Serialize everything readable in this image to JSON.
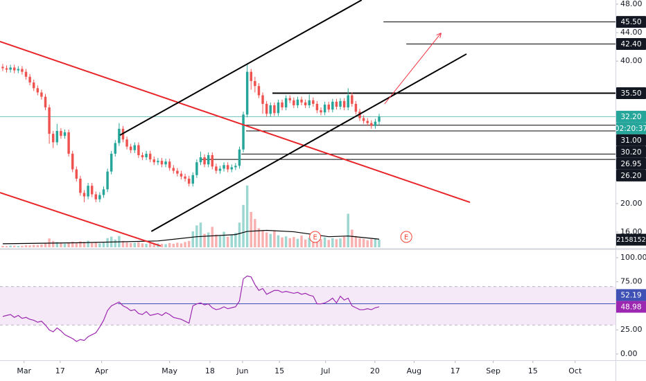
{
  "chart_data": [
    {
      "type": "candlestick",
      "x": [
        0,
        1,
        2,
        3,
        4,
        5,
        6,
        7,
        8,
        9,
        10,
        11,
        12,
        13,
        14,
        15,
        16,
        17,
        18,
        19,
        20,
        21,
        22,
        23,
        24,
        25,
        26,
        27,
        28,
        29,
        30,
        31,
        32,
        33,
        34,
        35,
        36,
        37,
        38,
        39,
        40,
        41,
        42,
        43,
        44,
        45,
        46,
        47,
        48,
        49,
        50,
        51,
        52,
        53,
        54,
        55,
        56,
        57,
        58,
        59,
        60,
        61,
        62,
        63,
        64,
        65,
        66,
        67,
        68,
        69,
        70,
        71,
        72,
        73,
        74,
        75,
        76,
        77,
        78,
        79,
        80,
        81,
        82,
        83,
        84,
        85,
        86,
        87,
        88,
        89,
        90,
        91,
        92,
        93,
        94,
        95,
        96,
        97
      ],
      "open": [
        39.2,
        39.0,
        38.8,
        39.1,
        38.7,
        38.9,
        38.5,
        37.8,
        37.0,
        36.2,
        35.6,
        35.0,
        33.5,
        29.8,
        28.6,
        30.2,
        29.5,
        30.0,
        27.0,
        24.8,
        23.5,
        21.5,
        21.0,
        22.5,
        21.3,
        20.6,
        21.2,
        22.0,
        24.5,
        27.0,
        28.5,
        30.5,
        29.0,
        28.0,
        27.5,
        28.2,
        26.8,
        26.5,
        27.0,
        26.2,
        25.8,
        26.0,
        25.5,
        25.9,
        25.0,
        24.6,
        24.2,
        23.8,
        23.5,
        22.8,
        24.0,
        25.8,
        26.5,
        25.5,
        26.8,
        25.2,
        24.6,
        24.9,
        25.4,
        24.8,
        25.1,
        25.3,
        27.6,
        32.5,
        38.5,
        37.2,
        36.5,
        35.2,
        34.0,
        32.6,
        33.8,
        32.7,
        34.2,
        33.5,
        34.8,
        34.5,
        33.8,
        34.6,
        34.2,
        33.8,
        34.5,
        34.0,
        33.1,
        32.8,
        33.9,
        33.2,
        34.3,
        33.6,
        34.4,
        33.5,
        35.2,
        34.0,
        32.9,
        32.0,
        31.6,
        31.3,
        30.9,
        31.5
      ],
      "high": [
        39.6,
        39.4,
        39.5,
        39.5,
        39.3,
        39.3,
        38.9,
        38.2,
        37.4,
        36.6,
        36.0,
        35.4,
        33.9,
        30.2,
        31.2,
        30.6,
        30.4,
        30.4,
        27.4,
        25.2,
        23.9,
        21.9,
        22.9,
        22.9,
        21.7,
        21.6,
        22.4,
        24.9,
        27.4,
        28.9,
        31.3,
        30.9,
        29.4,
        28.4,
        28.6,
        28.6,
        27.2,
        27.4,
        27.4,
        26.6,
        26.4,
        26.4,
        26.3,
        26.3,
        25.4,
        25.0,
        24.6,
        24.2,
        23.9,
        24.4,
        26.2,
        27.3,
        26.9,
        27.2,
        27.2,
        25.6,
        25.3,
        25.8,
        25.8,
        25.5,
        25.7,
        28.0,
        32.9,
        39.7,
        38.9,
        37.8,
        36.9,
        35.6,
        34.4,
        34.2,
        34.2,
        34.6,
        34.6,
        35.2,
        35.2,
        34.9,
        35.0,
        35.0,
        34.6,
        35.3,
        34.9,
        34.4,
        33.5,
        34.3,
        34.3,
        34.7,
        34.7,
        34.8,
        34.8,
        36.2,
        35.6,
        34.4,
        33.3,
        32.4,
        32.0,
        31.7,
        31.9,
        32.6
      ],
      "low": [
        38.6,
        38.4,
        38.4,
        38.3,
        38.3,
        38.1,
        37.4,
        36.6,
        35.8,
        35.2,
        34.6,
        33.1,
        28.4,
        27.8,
        28.2,
        29.1,
        29.1,
        26.6,
        24.4,
        23.1,
        21.1,
        20.2,
        20.6,
        20.9,
        20.2,
        20.2,
        20.8,
        21.6,
        24.1,
        26.6,
        28.1,
        28.6,
        27.6,
        27.1,
        27.1,
        26.4,
        26.1,
        26.1,
        25.8,
        25.4,
        25.4,
        25.1,
        25.1,
        24.6,
        24.2,
        23.8,
        23.4,
        23.1,
        22.4,
        22.4,
        23.6,
        25.4,
        25.1,
        25.1,
        24.8,
        24.2,
        24.2,
        24.5,
        24.4,
        24.4,
        24.7,
        24.9,
        27.2,
        32.1,
        36.0,
        35.6,
        34.8,
        32.6,
        32.2,
        32.2,
        32.3,
        32.3,
        33.1,
        33.1,
        34.1,
        33.4,
        33.4,
        33.8,
        33.4,
        33.4,
        33.6,
        32.7,
        32.4,
        32.4,
        32.8,
        32.8,
        33.2,
        33.2,
        33.1,
        33.1,
        33.6,
        32.5,
        31.6,
        31.2,
        30.9,
        30.5,
        30.5,
        31.1
      ],
      "close": [
        39.0,
        38.8,
        39.1,
        38.7,
        38.9,
        38.5,
        37.8,
        37.0,
        36.2,
        35.6,
        35.0,
        33.5,
        29.8,
        28.6,
        30.2,
        29.5,
        30.0,
        27.0,
        24.8,
        23.5,
        21.5,
        21.0,
        22.5,
        21.3,
        20.6,
        21.2,
        22.0,
        24.5,
        27.0,
        28.5,
        30.5,
        29.0,
        28.0,
        27.5,
        28.2,
        26.8,
        26.5,
        27.0,
        26.2,
        25.8,
        26.0,
        25.5,
        25.9,
        25.0,
        24.6,
        24.2,
        23.8,
        23.5,
        22.8,
        24.0,
        25.8,
        26.5,
        25.5,
        26.8,
        25.2,
        24.6,
        24.9,
        25.4,
        24.8,
        25.1,
        25.3,
        27.6,
        32.5,
        38.5,
        37.2,
        36.5,
        35.2,
        34.0,
        32.6,
        33.8,
        32.7,
        34.2,
        33.5,
        34.8,
        34.5,
        33.8,
        34.6,
        34.2,
        33.8,
        34.5,
        34.0,
        33.1,
        32.8,
        33.9,
        33.2,
        34.3,
        33.6,
        34.4,
        33.5,
        35.2,
        34.0,
        32.9,
        32.0,
        31.6,
        31.3,
        30.9,
        31.5,
        32.2
      ],
      "colors": {
        "up": "#26a69a",
        "down": "#ef5350"
      },
      "xlim": [
        -0.7,
        157.9
      ],
      "xticks": [
        {
          "value": 5.5,
          "label": "Mar"
        },
        {
          "value": 14.8,
          "label": "17"
        },
        {
          "value": 25.5,
          "label": "Apr"
        },
        {
          "value": 43,
          "label": "May"
        },
        {
          "value": 53.4,
          "label": "18"
        },
        {
          "value": 61.8,
          "label": "Jun"
        },
        {
          "value": 71.3,
          "label": "15"
        },
        {
          "value": 83.2,
          "label": "Jul"
        },
        {
          "value": 95.9,
          "label": "20"
        },
        {
          "value": 106,
          "label": "Aug"
        },
        {
          "value": 116.6,
          "label": "17"
        },
        {
          "value": 126.4,
          "label": "Sep"
        },
        {
          "value": 136.6,
          "label": "15"
        },
        {
          "value": 147.5,
          "label": "Oct"
        }
      ],
      "ylim": [
        13.86,
        48.58
      ],
      "yticks": [
        {
          "value": 48,
          "label": "48.00"
        },
        {
          "value": 44,
          "label": "44.00"
        },
        {
          "value": 40,
          "label": "40.00"
        },
        {
          "value": 20,
          "label": "20.00"
        },
        {
          "value": 16,
          "label": "16.00"
        }
      ],
      "price_lines": [
        {
          "value": 45.5,
          "label": "45.50",
          "from": 98.1,
          "width": 1
        },
        {
          "value": 42.4,
          "label": "42.40",
          "from": 104,
          "width": 1
        },
        {
          "value": 35.5,
          "label": "35.50",
          "from": 69.5,
          "width": 2
        },
        {
          "value": 31.0,
          "label": "31.00",
          "from": 62.7,
          "width": 1
        },
        {
          "value": 30.2,
          "label": "30.20",
          "from": 62.7,
          "width": 1
        },
        {
          "value": 26.95,
          "label": "26.95",
          "from": 61.5,
          "width": 1
        },
        {
          "value": 26.2,
          "label": "26.20",
          "from": 51.1,
          "width": 1
        }
      ],
      "last_price": {
        "value": 32.2,
        "label": "32.20",
        "countdown": "02:20:37",
        "color": "#26a69a"
      },
      "drawings": [
        {
          "color": "#e8262a",
          "arrow": false,
          "points": [
            [
              -0.7,
              42.75
            ],
            [
              120.4,
              20.18
            ]
          ]
        },
        {
          "color": "#e8262a",
          "arrow": false,
          "points": [
            [
              -0.7,
              21.54
            ],
            [
              40.7,
              14.05
            ]
          ]
        },
        {
          "color": "#000000",
          "arrow": false,
          "points": [
            [
              30.2,
              29.6
            ],
            [
              92.5,
              48.58
            ]
          ]
        },
        {
          "color": "#000000",
          "arrow": false,
          "points": [
            [
              38.3,
              16.1
            ],
            [
              119.5,
              41.0
            ]
          ]
        },
        {
          "color": "#f23645",
          "arrow": true,
          "points": [
            [
              98.4,
              34.0
            ],
            [
              112.9,
              43.9
            ]
          ]
        }
      ],
      "events": [
        {
          "x": 80.5,
          "label": "E"
        },
        {
          "x": 104,
          "label": "E"
        }
      ],
      "volume": {
        "values": [
          400000,
          350000,
          500000,
          450000,
          380000,
          420000,
          600000,
          550000,
          700000,
          650000,
          800000,
          1200000,
          2500000,
          1800000,
          1500000,
          1100000,
          1000000,
          1400000,
          1600000,
          1300000,
          1700000,
          1500000,
          1900000,
          1200000,
          1400000,
          1100000,
          1300000,
          2600000,
          3000000,
          2200000,
          3200000,
          1800000,
          1400000,
          1200000,
          1300000,
          1500000,
          1100000,
          1000000,
          1200000,
          900000,
          1100000,
          1000000,
          900000,
          1200000,
          1000000,
          1300000,
          1100000,
          1500000,
          1800000,
          4500000,
          6200000,
          7000000,
          3800000,
          4200000,
          5800000,
          3600000,
          3200000,
          4400000,
          3000000,
          3500000,
          4100000,
          7000000,
          12000000,
          17500000,
          10000000,
          8000000,
          5400000,
          4800000,
          4200000,
          3800000,
          4600000,
          3400000,
          2800000,
          3100000,
          2600000,
          2900000,
          2400000,
          3300000,
          2200000,
          2700000,
          2500000,
          3600000,
          2300000,
          2800000,
          2100000,
          2600000,
          2300000,
          2500000,
          3000000,
          9500000,
          5000000,
          3200000,
          2600000,
          2400000,
          2000000,
          2300000,
          2500000,
          2158152
        ],
        "ylim": [
          0,
          19600000
        ],
        "ma": {
          "x": [
            0,
            20,
            40,
            50,
            60,
            63,
            68,
            75,
            84,
            89,
            97
          ],
          "values": [
            1000000,
            1300000,
            1800000,
            3000000,
            3600000,
            4500000,
            4800000,
            4400000,
            3000000,
            3200000,
            2300000
          ],
          "color": "#000000"
        }
      }
    },
    {
      "type": "line",
      "x": [
        0,
        1,
        2,
        3,
        4,
        5,
        6,
        7,
        8,
        9,
        10,
        11,
        12,
        13,
        14,
        15,
        16,
        17,
        18,
        19,
        20,
        21,
        22,
        23,
        24,
        25,
        26,
        27,
        28,
        29,
        30,
        31,
        32,
        33,
        34,
        35,
        36,
        37,
        38,
        39,
        40,
        41,
        42,
        43,
        44,
        45,
        46,
        47,
        48,
        49,
        50,
        51,
        52,
        53,
        54,
        55,
        56,
        57,
        58,
        59,
        60,
        61,
        62,
        63,
        64,
        65,
        66,
        67,
        68,
        69,
        70,
        71,
        72,
        73,
        74,
        75,
        76,
        77,
        78,
        79,
        80,
        81,
        82,
        83,
        84,
        85,
        86,
        87,
        88,
        89,
        90,
        91,
        92,
        93,
        94,
        95,
        96,
        97
      ],
      "values": [
        39,
        40,
        41,
        38,
        40,
        37,
        38,
        36,
        35,
        33,
        34,
        30,
        25,
        23,
        27,
        24,
        20,
        18,
        16,
        13,
        15,
        14,
        18,
        20,
        22,
        28,
        35,
        45,
        50,
        52,
        54,
        50,
        48,
        45,
        46,
        42,
        41,
        44,
        40,
        41,
        42,
        40,
        43,
        41,
        38,
        37,
        36,
        34,
        32,
        50,
        52,
        53,
        51,
        52,
        48,
        46,
        47,
        49,
        47,
        48,
        49,
        55,
        78,
        81,
        80,
        72,
        66,
        68,
        62,
        64,
        66,
        66,
        64,
        65,
        64,
        63,
        64,
        62,
        63,
        61,
        60,
        52,
        52,
        53,
        55,
        58,
        53,
        60,
        56,
        58,
        50,
        48,
        46,
        46,
        47,
        46,
        48,
        48.98
      ],
      "color": "#9c27b0",
      "xlim": [
        -0.7,
        157.9
      ],
      "ylim": [
        -6.5,
        107.2
      ],
      "yticks": [
        {
          "value": 100,
          "label": "100.00"
        },
        {
          "value": 75,
          "label": "75.00"
        },
        {
          "value": 25,
          "label": "25.00"
        },
        {
          "value": 0,
          "label": "0.00"
        }
      ],
      "band": [
        30,
        70
      ],
      "band_color": "#9c27b0",
      "level": {
        "value": 52.19,
        "label": "52.19",
        "from": 29.7,
        "color": "#3f51b5"
      }
    }
  ]
}
